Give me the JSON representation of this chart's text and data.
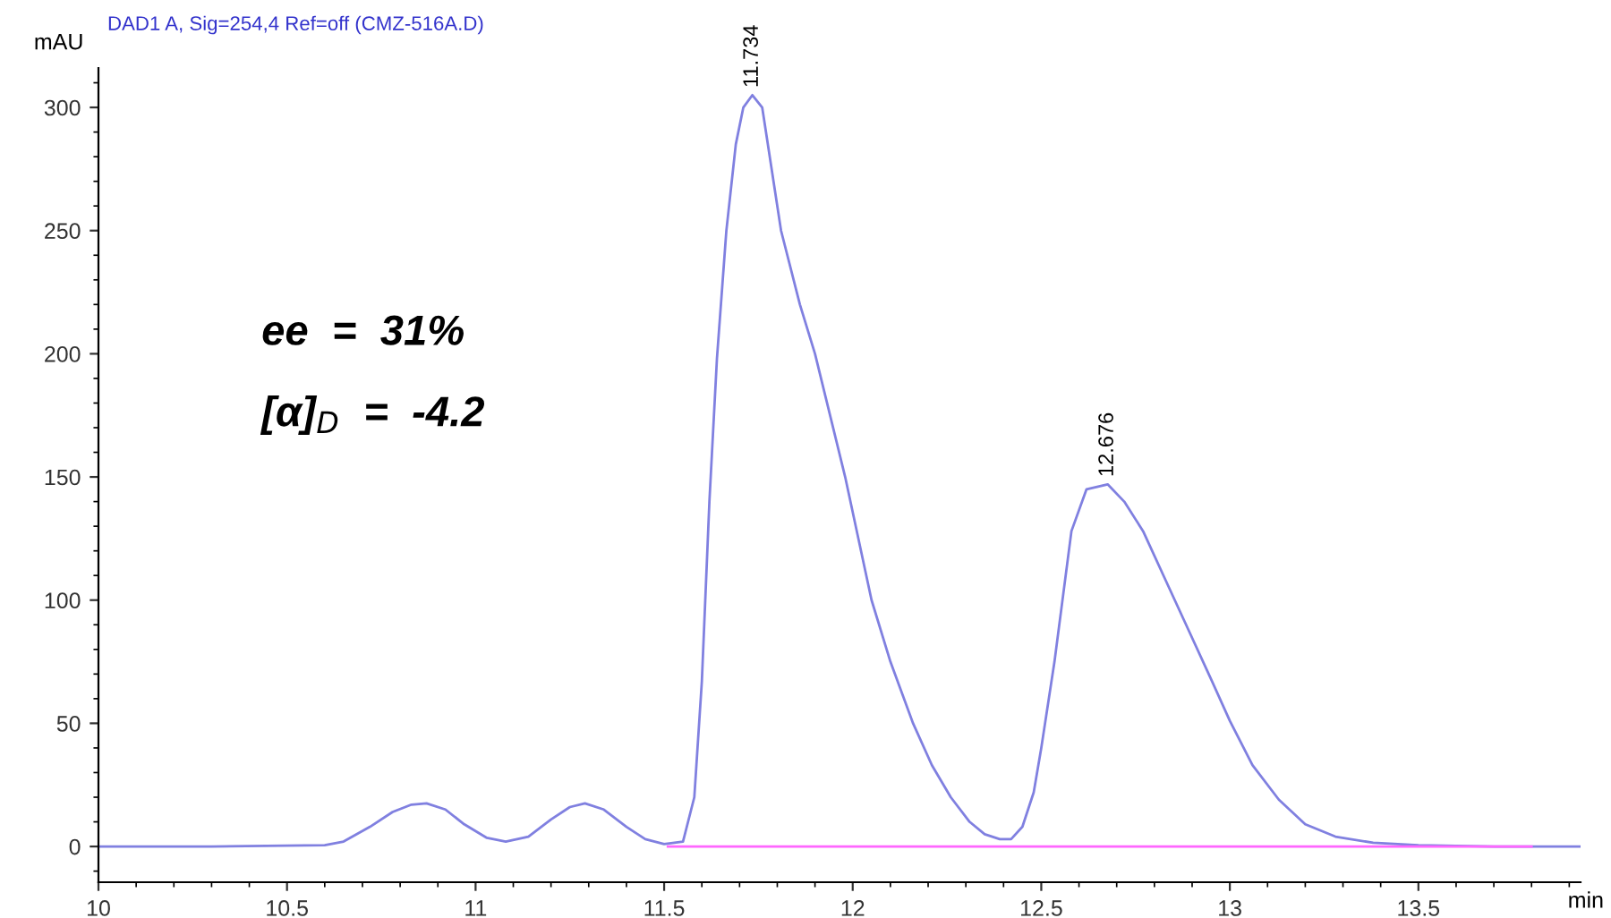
{
  "chart_data": {
    "type": "line",
    "title": "DAD1 A, Sig=254,4 Ref=off (CMZ-516A.D)",
    "xlabel": "min",
    "ylabel": "mAU",
    "xlim": [
      10,
      13.93
    ],
    "ylim": [
      -14.5,
      316
    ],
    "xticks": [
      10,
      10.5,
      11,
      11.5,
      12,
      12.5,
      13,
      13.5
    ],
    "yticks": [
      0,
      50,
      100,
      150,
      200,
      250,
      300
    ],
    "grid": false,
    "legend": false,
    "marker": "none",
    "line_style": "solid",
    "series": [
      {
        "color": "#8080e0",
        "x": [
          10,
          10.3,
          10.6,
          10.65,
          10.72,
          10.78,
          10.83,
          10.87,
          10.92,
          10.97,
          11.03,
          11.08,
          11.14,
          11.2,
          11.25,
          11.29,
          11.34,
          11.4,
          11.45,
          11.5,
          11.55,
          11.58,
          11.6,
          11.62,
          11.64,
          11.665,
          11.69,
          11.71,
          11.734,
          11.76,
          11.81,
          11.86,
          11.9,
          11.98,
          12.05,
          12.1,
          12.16,
          12.21,
          12.26,
          12.31,
          12.35,
          12.39,
          12.42,
          12.45,
          12.48,
          12.5,
          12.535,
          12.58,
          12.62,
          12.676,
          12.72,
          12.77,
          12.83,
          12.893,
          12.95,
          13.0,
          13.06,
          13.13,
          13.2,
          13.28,
          13.38,
          13.5,
          13.7,
          13.93
        ],
        "values": [
          0,
          0,
          0.5,
          2,
          8,
          14,
          17,
          17.5,
          15,
          9,
          3.5,
          2,
          4,
          11,
          16,
          17.5,
          15,
          8,
          3,
          1,
          2,
          20,
          67,
          140,
          198,
          250,
          285,
          300,
          305,
          300,
          250,
          220,
          200,
          150,
          100,
          75,
          50,
          33,
          20,
          10,
          5,
          3,
          3,
          8,
          22,
          40,
          75,
          128,
          145,
          147,
          140,
          128,
          108,
          87,
          68,
          51,
          33,
          19,
          9,
          4,
          1.5,
          0.5,
          0,
          0
        ]
      },
      {
        "color": "#ff66ff",
        "x": [
          11.51,
          12.42,
          13.8
        ],
        "values": [
          0,
          0,
          0
        ]
      }
    ],
    "annotations": [
      {
        "text": "11.734",
        "x": 11.734,
        "y": 305
      },
      {
        "text": "12.676",
        "x": 12.676,
        "y": 147
      },
      "ee  =  31%",
      "[α]$_{D}$  =  -4.2"
    ]
  }
}
